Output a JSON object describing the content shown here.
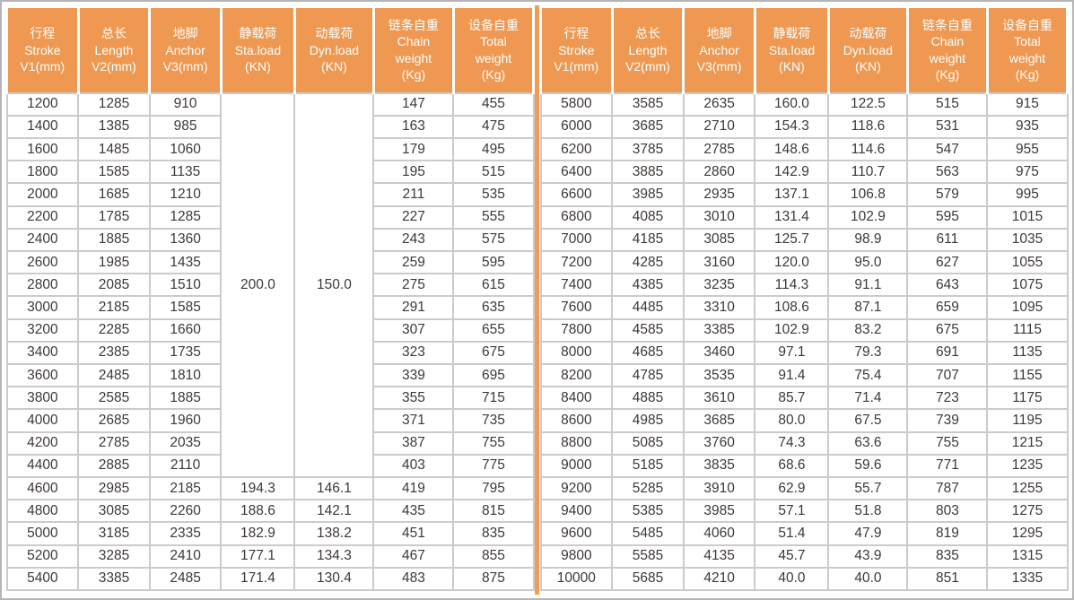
{
  "colors": {
    "header_bg": "#EE9851",
    "divider_orange": "#F19C50",
    "grid_line": "#CBCBCB",
    "frame_border": "#B5B5B5",
    "data_text": "#3E3835",
    "header_text": "#FFFFFF"
  },
  "table": {
    "columns": [
      {
        "key": "stroke",
        "lines": [
          "行程",
          "Stroke",
          "V1(mm)"
        ]
      },
      {
        "key": "length",
        "lines": [
          "总长",
          "Length",
          "V2(mm)"
        ]
      },
      {
        "key": "anchor",
        "lines": [
          "地脚",
          "Anchor",
          "V3(mm)"
        ]
      },
      {
        "key": "sta-load",
        "lines": [
          "静载荷",
          "Sta.load",
          "(KN)"
        ]
      },
      {
        "key": "dyn-load",
        "lines": [
          "动载荷",
          "Dyn.load",
          "(KN)"
        ]
      },
      {
        "key": "chain-weight",
        "lines": [
          "链条自重",
          "Chain",
          "weight",
          "(Kg)"
        ]
      },
      {
        "key": "total-weight",
        "lines": [
          "设备自重",
          "Total",
          "weight",
          "(Kg)"
        ]
      }
    ],
    "left": {
      "merged": {
        "rowspan": 17,
        "sta_load": "200.0",
        "dyn_load": "150.0"
      },
      "rows": [
        [
          "1200",
          "1285",
          "910",
          null,
          null,
          "147",
          "455"
        ],
        [
          "1400",
          "1385",
          "985",
          null,
          null,
          "163",
          "475"
        ],
        [
          "1600",
          "1485",
          "1060",
          null,
          null,
          "179",
          "495"
        ],
        [
          "1800",
          "1585",
          "1135",
          null,
          null,
          "195",
          "515"
        ],
        [
          "2000",
          "1685",
          "1210",
          null,
          null,
          "211",
          "535"
        ],
        [
          "2200",
          "1785",
          "1285",
          null,
          null,
          "227",
          "555"
        ],
        [
          "2400",
          "1885",
          "1360",
          null,
          null,
          "243",
          "575"
        ],
        [
          "2600",
          "1985",
          "1435",
          null,
          null,
          "259",
          "595"
        ],
        [
          "2800",
          "2085",
          "1510",
          null,
          null,
          "275",
          "615"
        ],
        [
          "3000",
          "2185",
          "1585",
          null,
          null,
          "291",
          "635"
        ],
        [
          "3200",
          "2285",
          "1660",
          null,
          null,
          "307",
          "655"
        ],
        [
          "3400",
          "2385",
          "1735",
          null,
          null,
          "323",
          "675"
        ],
        [
          "3600",
          "2485",
          "1810",
          null,
          null,
          "339",
          "695"
        ],
        [
          "3800",
          "2585",
          "1885",
          null,
          null,
          "355",
          "715"
        ],
        [
          "4000",
          "2685",
          "1960",
          null,
          null,
          "371",
          "735"
        ],
        [
          "4200",
          "2785",
          "2035",
          null,
          null,
          "387",
          "755"
        ],
        [
          "4400",
          "2885",
          "2110",
          null,
          null,
          "403",
          "775"
        ],
        [
          "4600",
          "2985",
          "2185",
          "194.3",
          "146.1",
          "419",
          "795"
        ],
        [
          "4800",
          "3085",
          "2260",
          "188.6",
          "142.1",
          "435",
          "815"
        ],
        [
          "5000",
          "3185",
          "2335",
          "182.9",
          "138.2",
          "451",
          "835"
        ],
        [
          "5200",
          "3285",
          "2410",
          "177.1",
          "134.3",
          "467",
          "855"
        ],
        [
          "5400",
          "3385",
          "2485",
          "171.4",
          "130.4",
          "483",
          "875"
        ]
      ]
    },
    "right": {
      "rows": [
        [
          "5800",
          "3585",
          "2635",
          "160.0",
          "122.5",
          "515",
          "915"
        ],
        [
          "6000",
          "3685",
          "2710",
          "154.3",
          "118.6",
          "531",
          "935"
        ],
        [
          "6200",
          "3785",
          "2785",
          "148.6",
          "114.6",
          "547",
          "955"
        ],
        [
          "6400",
          "3885",
          "2860",
          "142.9",
          "110.7",
          "563",
          "975"
        ],
        [
          "6600",
          "3985",
          "2935",
          "137.1",
          "106.8",
          "579",
          "995"
        ],
        [
          "6800",
          "4085",
          "3010",
          "131.4",
          "102.9",
          "595",
          "1015"
        ],
        [
          "7000",
          "4185",
          "3085",
          "125.7",
          "98.9",
          "611",
          "1035"
        ],
        [
          "7200",
          "4285",
          "3160",
          "120.0",
          "95.0",
          "627",
          "1055"
        ],
        [
          "7400",
          "4385",
          "3235",
          "114.3",
          "91.1",
          "643",
          "1075"
        ],
        [
          "7600",
          "4485",
          "3310",
          "108.6",
          "87.1",
          "659",
          "1095"
        ],
        [
          "7800",
          "4585",
          "3385",
          "102.9",
          "83.2",
          "675",
          "1115"
        ],
        [
          "8000",
          "4685",
          "3460",
          "97.1",
          "79.3",
          "691",
          "1135"
        ],
        [
          "8200",
          "4785",
          "3535",
          "91.4",
          "75.4",
          "707",
          "1155"
        ],
        [
          "8400",
          "4885",
          "3610",
          "85.7",
          "71.4",
          "723",
          "1175"
        ],
        [
          "8600",
          "4985",
          "3685",
          "80.0",
          "67.5",
          "739",
          "1195"
        ],
        [
          "8800",
          "5085",
          "3760",
          "74.3",
          "63.6",
          "755",
          "1215"
        ],
        [
          "9000",
          "5185",
          "3835",
          "68.6",
          "59.6",
          "771",
          "1235"
        ],
        [
          "9200",
          "5285",
          "3910",
          "62.9",
          "55.7",
          "787",
          "1255"
        ],
        [
          "9400",
          "5385",
          "3985",
          "57.1",
          "51.8",
          "803",
          "1275"
        ],
        [
          "9600",
          "5485",
          "4060",
          "51.4",
          "47.9",
          "819",
          "1295"
        ],
        [
          "9800",
          "5585",
          "4135",
          "45.7",
          "43.9",
          "835",
          "1315"
        ],
        [
          "10000",
          "5685",
          "4210",
          "40.0",
          "40.0",
          "851",
          "1335"
        ]
      ]
    }
  }
}
